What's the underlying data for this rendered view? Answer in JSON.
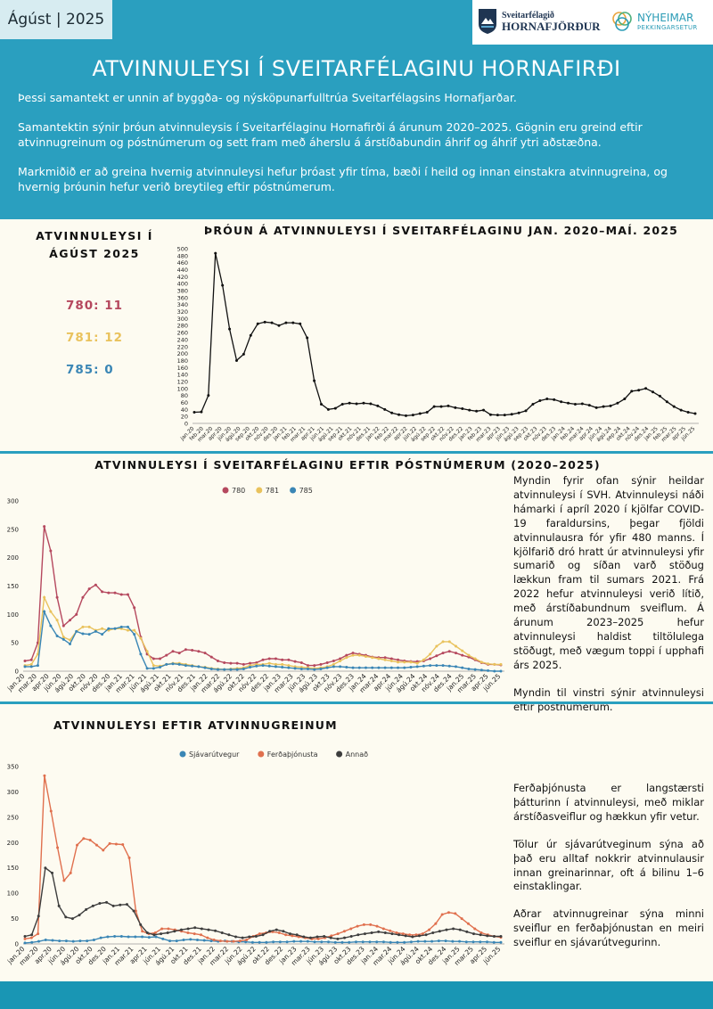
{
  "header": {
    "date_label": "Ágúst | 2025",
    "logo1_line1": "Sveitarfélagið",
    "logo1_line2": "HORNAFJÖRÐUR",
    "logo2_line1": "NÝHEIMAR",
    "logo2_line2": "ÞEKKINGARSETUR",
    "title": "ATVINNULEYSI Í SVEITARFÉLAGINU HORNAFIRÐI",
    "intro": [
      "Þessi samantekt er unnin af byggða- og nýsköpunarfulltrúa Sveitarfélagsins Hornafjarðar.",
      "Samantektin sýnir þróun atvinnuleysis í Sveitarfélaginu Hornafirði á árunum 2020–2025. Gögnin eru greind eftir atvinnugreinum og póstnúmerum og sett fram með áherslu á árstíðabundin áhrif og áhrif ytri aðstæðna.",
      "Markmiðið er að greina hvernig atvinnuleysi hefur þróast yfir tíma, bæði í heild og innan einstakra atvinnugreina, og hvernig þróunin hefur verið breytileg eftir póstnúmerum."
    ]
  },
  "side": {
    "heading": "ATVINNULEYSI Í ÁGÚST 2025",
    "items": [
      {
        "label": "780: 11",
        "color": "#b5485e"
      },
      {
        "label": "781: 12",
        "color": "#e9c25c"
      },
      {
        "label": "785: 0",
        "color": "#3a86b5"
      }
    ]
  },
  "text1": [
    "Myndin fyrir ofan sýnir heildar atvinnuleysi í SVH. Atvinnuleysi náði hámarki í apríl 2020 í kjölfar COVID-19 faraldursins, þegar fjöldi atvinnulausra fór yfir 480 manns. Í kjölfarið dró hratt úr atvinnuleysi yfir sumarið og síðan varð stöðug lækkun fram til sumars 2021. Frá 2022 hefur atvinnuleysi verið lítið, með árstíðabundnum sveiflum. Á árunum 2023–2025 hefur atvinnuleysi haldist tiltölulega stöðugt, með vægum toppi í upphafi árs 2025.",
    "Myndin til vinstri sýnir atvinnuleysi eftir póstnúmerum."
  ],
  "text2": [
    "Ferðaþjónusta er langstærsti þátturinn í atvinnuleysi, með miklar árstíðasveiflur og hækkun yfir vetur.",
    "Tölur úr sjávarútveginum sýna að það eru alltaf nokkrir atvinnulausir innan greinarinnar, oft á bilinu 1–6 einstaklingar.",
    "Aðrar atvinnugreinar sýna minni sveiflur en ferðaþjónustan en meiri sveiflur en sjávarútvegurinn."
  ],
  "chart_data": [
    {
      "type": "line",
      "title": "ÞRÓUN Á ATVINNULEYSI Í SVEITARFÉLAGINU JAN. 2020–MAÍ. 2025",
      "ylim": [
        0,
        500
      ],
      "yticks": [
        0,
        20,
        40,
        60,
        80,
        100,
        120,
        140,
        160,
        180,
        200,
        220,
        240,
        260,
        280,
        300,
        320,
        340,
        360,
        380,
        400,
        420,
        440,
        460,
        480,
        500
      ],
      "xticklabels": [
        "jan.20",
        "feb.20",
        "mar.20",
        "apr.20",
        "jún.20",
        "ágú.20",
        "sep.20",
        "okt.20",
        "nóv.20",
        "des.20",
        "jan.21",
        "feb.21",
        "mar.21",
        "apr.21",
        "jún.21",
        "ágú.21",
        "sep.21",
        "okt.21",
        "nóv.21",
        "des.21",
        "jan.22",
        "feb.22",
        "mar.22",
        "apr.22",
        "jún.22",
        "ágú.22",
        "sep.22",
        "okt.22",
        "nóv.22",
        "des.22",
        "jan.23",
        "feb.23",
        "mar.23",
        "apr.23",
        "jún.23",
        "ágú.23",
        "sep.23",
        "okt.23",
        "nóv.23",
        "des.23",
        "jan.24",
        "feb.24",
        "mar.24",
        "apr.24",
        "jún.24",
        "ágú.24",
        "sep.24",
        "okt.24",
        "nóv.24",
        "des.24",
        "jan.25",
        "feb.25",
        "mar.25",
        "apr.25",
        "jún.25"
      ],
      "series": [
        {
          "color": "#111111",
          "values": [
            32,
            33,
            80,
            487,
            395,
            270,
            180,
            198,
            252,
            285,
            290,
            288,
            280,
            288,
            288,
            285,
            245,
            122,
            55,
            40,
            43,
            55,
            58,
            56,
            58,
            56,
            50,
            40,
            30,
            25,
            22,
            24,
            28,
            32,
            48,
            48,
            50,
            45,
            42,
            38,
            35,
            38,
            25,
            24,
            24,
            26,
            30,
            36,
            55,
            65,
            70,
            68,
            62,
            58,
            55,
            56,
            52,
            45,
            48,
            50,
            58,
            70,
            92,
            95,
            100,
            90,
            78,
            62,
            48,
            38,
            32,
            28
          ]
        }
      ],
      "grid": false
    },
    {
      "type": "line",
      "title": "ATVINNULEYSI Í SVEITARFÉLAGINU EFTIR PÓSTNÚMERUM (2020–2025)",
      "ylim": [
        0,
        300
      ],
      "yticks": [
        0,
        50,
        100,
        150,
        200,
        250,
        300
      ],
      "xticklabels": [
        "jan.20",
        "mar.20",
        "apr.20",
        "jún.20",
        "ágú.20",
        "okt.20",
        "nóv.20",
        "des.20",
        "jan.21",
        "mar.21",
        "jún.21",
        "ágú.21",
        "okt.21",
        "nóv.21",
        "des.21",
        "jan.22",
        "mar.22",
        "ágú.22",
        "okt.22",
        "nóv.22",
        "des.22",
        "jan.23",
        "mar.23",
        "jún.23",
        "ágú.23",
        "okt.23",
        "nóv.23",
        "des.23",
        "jan.24",
        "mar.24",
        "apr.24",
        "jún.24",
        "ágú.24",
        "okt.24",
        "nóv.24",
        "des.24",
        "jan.25",
        "mar.25",
        "apr.25",
        "jún.25"
      ],
      "legend": "top",
      "series": [
        {
          "name": "780",
          "color": "#b5485e",
          "values": [
            18,
            20,
            50,
            255,
            212,
            130,
            80,
            90,
            100,
            130,
            145,
            152,
            140,
            138,
            138,
            135,
            135,
            112,
            60,
            30,
            22,
            22,
            28,
            35,
            32,
            38,
            37,
            35,
            32,
            25,
            18,
            15,
            14,
            14,
            12,
            14,
            15,
            20,
            22,
            22,
            20,
            20,
            17,
            15,
            10,
            10,
            12,
            15,
            18,
            22,
            28,
            32,
            30,
            28,
            25,
            24,
            24,
            22,
            20,
            18,
            17,
            17,
            18,
            22,
            27,
            32,
            35,
            32,
            28,
            25,
            20,
            15,
            12,
            12,
            11
          ]
        },
        {
          "name": "781",
          "color": "#e9c25c",
          "values": [
            10,
            12,
            30,
            130,
            105,
            90,
            60,
            55,
            70,
            78,
            78,
            72,
            75,
            72,
            75,
            75,
            72,
            72,
            58,
            35,
            10,
            9,
            12,
            14,
            14,
            12,
            10,
            8,
            7,
            5,
            4,
            3,
            4,
            5,
            6,
            10,
            12,
            12,
            14,
            12,
            12,
            10,
            8,
            7,
            6,
            5,
            6,
            8,
            12,
            18,
            24,
            28,
            28,
            26,
            24,
            22,
            20,
            18,
            16,
            16,
            16,
            14,
            20,
            30,
            44,
            52,
            52,
            44,
            36,
            28,
            22,
            16,
            13,
            12,
            12
          ]
        },
        {
          "name": "785",
          "color": "#3a86b5",
          "values": [
            8,
            8,
            10,
            105,
            80,
            62,
            56,
            48,
            70,
            66,
            65,
            70,
            65,
            75,
            75,
            78,
            78,
            65,
            30,
            5,
            5,
            7,
            12,
            13,
            12,
            10,
            9,
            8,
            6,
            4,
            3,
            3,
            3,
            3,
            4,
            7,
            9,
            10,
            9,
            8,
            7,
            6,
            5,
            4,
            4,
            3,
            4,
            6,
            8,
            8,
            7,
            6,
            6,
            6,
            6,
            6,
            6,
            6,
            6,
            6,
            7,
            8,
            9,
            10,
            10,
            10,
            9,
            8,
            6,
            4,
            3,
            2,
            1,
            0,
            0
          ]
        }
      ],
      "grid": false
    },
    {
      "type": "line",
      "title": "ATVINNULEYSI EFTIR ATVINNUGREINUM",
      "ylim": [
        0,
        350
      ],
      "yticks": [
        0,
        50,
        100,
        150,
        200,
        250,
        300,
        350
      ],
      "xticklabels": [
        "jan.20",
        "mar.20",
        "apr.20",
        "jún.20",
        "ágú.20",
        "okt.20",
        "des.20",
        "jan.21",
        "mar.21",
        "apr.21",
        "jún.21",
        "ágú.21",
        "okt.21",
        "des.21",
        "jan.22",
        "mar.22",
        "jún.22",
        "ágú.22",
        "okt.22",
        "des.22",
        "jan.23",
        "mar.23",
        "jún.23",
        "ágú.23",
        "okt.23",
        "des.23",
        "jan.24",
        "mar.24",
        "jún.24",
        "ágú.24",
        "okt.24",
        "des.24",
        "jan.25",
        "mar.25",
        "apr.25",
        "jún.25"
      ],
      "legend": "top",
      "series": [
        {
          "name": "Sjávarútvegur",
          "color": "#3a86b5",
          "values": [
            2,
            3,
            5,
            8,
            7,
            6,
            6,
            5,
            6,
            6,
            8,
            12,
            14,
            15,
            15,
            14,
            14,
            14,
            13,
            14,
            10,
            6,
            6,
            8,
            9,
            8,
            7,
            6,
            5,
            6,
            5,
            4,
            4,
            3,
            3,
            3,
            4,
            4,
            4,
            5,
            5,
            5,
            4,
            4,
            4,
            3,
            3,
            3,
            4,
            4,
            4,
            4,
            4,
            3,
            3,
            3,
            4,
            5,
            5,
            5,
            6,
            6,
            5,
            5,
            4,
            4,
            4,
            4,
            3,
            3
          ]
        },
        {
          "name": "Ferðaþjónusta",
          "color": "#e0704e",
          "values": [
            10,
            12,
            20,
            332,
            262,
            190,
            125,
            140,
            195,
            208,
            205,
            195,
            185,
            198,
            197,
            196,
            170,
            65,
            25,
            20,
            22,
            30,
            30,
            28,
            25,
            22,
            20,
            18,
            12,
            8,
            6,
            5,
            5,
            6,
            8,
            15,
            20,
            22,
            24,
            22,
            18,
            16,
            14,
            12,
            10,
            10,
            12,
            16,
            20,
            25,
            30,
            35,
            38,
            38,
            35,
            30,
            26,
            22,
            20,
            18,
            18,
            20,
            28,
            40,
            58,
            62,
            60,
            50,
            40,
            30,
            22,
            18,
            15,
            13
          ]
        },
        {
          "name": "Annað",
          "color": "#3d3d3d",
          "values": [
            15,
            18,
            55,
            150,
            140,
            75,
            53,
            50,
            57,
            68,
            75,
            80,
            82,
            75,
            77,
            78,
            65,
            38,
            22,
            18,
            20,
            22,
            25,
            28,
            30,
            32,
            30,
            28,
            26,
            22,
            18,
            14,
            12,
            14,
            15,
            18,
            25,
            28,
            25,
            20,
            18,
            14,
            12,
            14,
            15,
            12,
            10,
            12,
            15,
            18,
            20,
            22,
            24,
            22,
            20,
            18,
            16,
            14,
            16,
            18,
            22,
            25,
            28,
            30,
            28,
            24,
            20,
            18,
            16,
            15,
            15
          ]
        }
      ],
      "grid": false
    }
  ]
}
